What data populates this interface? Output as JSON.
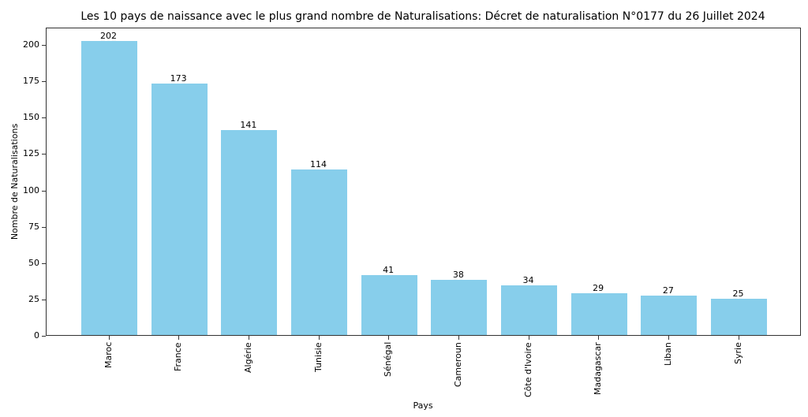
{
  "chart_data": {
    "type": "bar",
    "title": "Les 10 pays de naissance avec le plus grand nombre de Naturalisations: Décret de naturalisation N°0177 du 26 Juillet 2024",
    "xlabel": "Pays",
    "ylabel": "Nombre de Naturalisations",
    "categories": [
      "Maroc",
      "France",
      "Algérie",
      "Tunisie",
      "Sénégal",
      "Cameroun",
      "Côte d'Ivoire",
      "Madagascar",
      "Liban",
      "Syrie"
    ],
    "values": [
      202,
      173,
      141,
      114,
      41,
      38,
      34,
      29,
      27,
      25
    ],
    "yticks": [
      0,
      25,
      50,
      75,
      100,
      125,
      150,
      175,
      200
    ],
    "ylim": [
      0,
      212
    ],
    "bar_color": "#87ceeb",
    "grid": false,
    "legend": null,
    "xtick_rotation": 90,
    "data_labels": true
  }
}
